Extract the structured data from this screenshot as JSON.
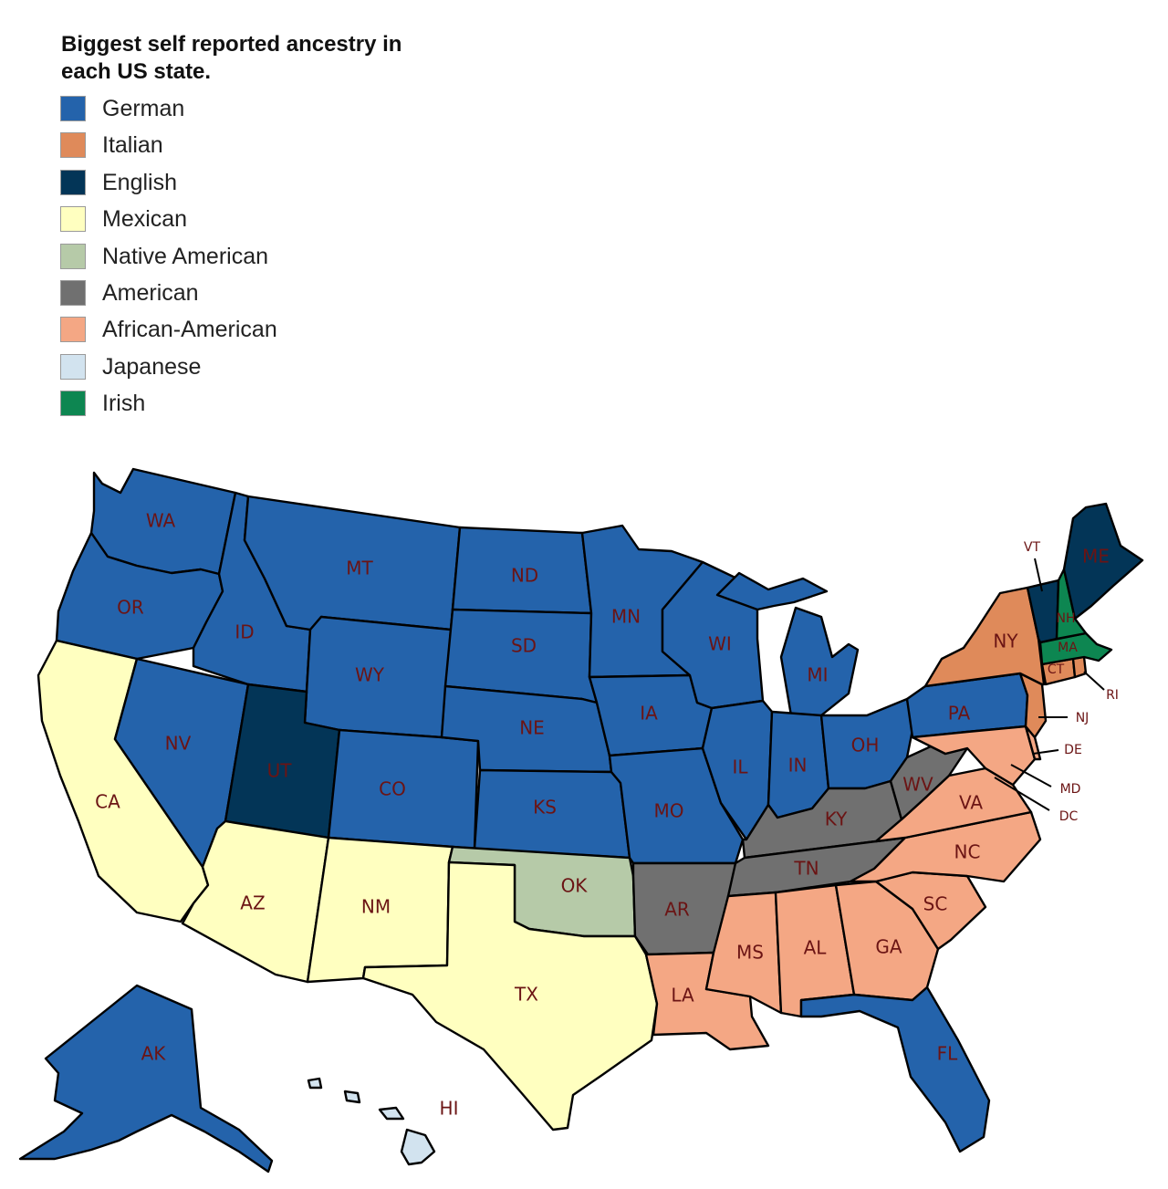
{
  "title": "Biggest self reported ancestry in each US state.",
  "legend": [
    {
      "label": "German",
      "color": "#2463ab"
    },
    {
      "label": "Italian",
      "color": "#df8a5a"
    },
    {
      "label": "English",
      "color": "#033557"
    },
    {
      "label": "Mexican",
      "color": "#ffffc0"
    },
    {
      "label": "Native American",
      "color": "#b6caa8"
    },
    {
      "label": "American",
      "color": "#707070"
    },
    {
      "label": "African-American",
      "color": "#f4a784"
    },
    {
      "label": "Japanese",
      "color": "#d2e3ef"
    },
    {
      "label": "Irish",
      "color": "#0d8651"
    }
  ],
  "states": [
    {
      "abbr": "WA",
      "ancestry": "German"
    },
    {
      "abbr": "OR",
      "ancestry": "German"
    },
    {
      "abbr": "CA",
      "ancestry": "Mexican"
    },
    {
      "abbr": "NV",
      "ancestry": "German"
    },
    {
      "abbr": "ID",
      "ancestry": "German"
    },
    {
      "abbr": "MT",
      "ancestry": "German"
    },
    {
      "abbr": "WY",
      "ancestry": "German"
    },
    {
      "abbr": "UT",
      "ancestry": "English"
    },
    {
      "abbr": "AZ",
      "ancestry": "Mexican"
    },
    {
      "abbr": "CO",
      "ancestry": "German"
    },
    {
      "abbr": "NM",
      "ancestry": "Mexican"
    },
    {
      "abbr": "ND",
      "ancestry": "German"
    },
    {
      "abbr": "SD",
      "ancestry": "German"
    },
    {
      "abbr": "NE",
      "ancestry": "German"
    },
    {
      "abbr": "KS",
      "ancestry": "German"
    },
    {
      "abbr": "OK",
      "ancestry": "Native American"
    },
    {
      "abbr": "TX",
      "ancestry": "Mexican"
    },
    {
      "abbr": "MN",
      "ancestry": "German"
    },
    {
      "abbr": "IA",
      "ancestry": "German"
    },
    {
      "abbr": "MO",
      "ancestry": "German"
    },
    {
      "abbr": "AR",
      "ancestry": "American"
    },
    {
      "abbr": "LA",
      "ancestry": "African-American"
    },
    {
      "abbr": "WI",
      "ancestry": "German"
    },
    {
      "abbr": "IL",
      "ancestry": "German"
    },
    {
      "abbr": "MI",
      "ancestry": "German"
    },
    {
      "abbr": "IN",
      "ancestry": "German"
    },
    {
      "abbr": "OH",
      "ancestry": "German"
    },
    {
      "abbr": "KY",
      "ancestry": "American"
    },
    {
      "abbr": "TN",
      "ancestry": "American"
    },
    {
      "abbr": "MS",
      "ancestry": "African-American"
    },
    {
      "abbr": "AL",
      "ancestry": "African-American"
    },
    {
      "abbr": "GA",
      "ancestry": "African-American"
    },
    {
      "abbr": "FL",
      "ancestry": "German"
    },
    {
      "abbr": "SC",
      "ancestry": "African-American"
    },
    {
      "abbr": "NC",
      "ancestry": "African-American"
    },
    {
      "abbr": "VA",
      "ancestry": "African-American"
    },
    {
      "abbr": "WV",
      "ancestry": "American"
    },
    {
      "abbr": "PA",
      "ancestry": "German"
    },
    {
      "abbr": "NY",
      "ancestry": "Italian"
    },
    {
      "abbr": "VT",
      "ancestry": "English"
    },
    {
      "abbr": "NH",
      "ancestry": "Irish"
    },
    {
      "abbr": "ME",
      "ancestry": "English"
    },
    {
      "abbr": "MA",
      "ancestry": "Irish"
    },
    {
      "abbr": "RI",
      "ancestry": "Italian"
    },
    {
      "abbr": "CT",
      "ancestry": "Italian"
    },
    {
      "abbr": "NJ",
      "ancestry": "Italian"
    },
    {
      "abbr": "DE",
      "ancestry": "African-American"
    },
    {
      "abbr": "MD",
      "ancestry": "African-American"
    },
    {
      "abbr": "DC",
      "ancestry": "African-American"
    },
    {
      "abbr": "AK",
      "ancestry": "German"
    },
    {
      "abbr": "HI",
      "ancestry": "Japanese"
    }
  ]
}
